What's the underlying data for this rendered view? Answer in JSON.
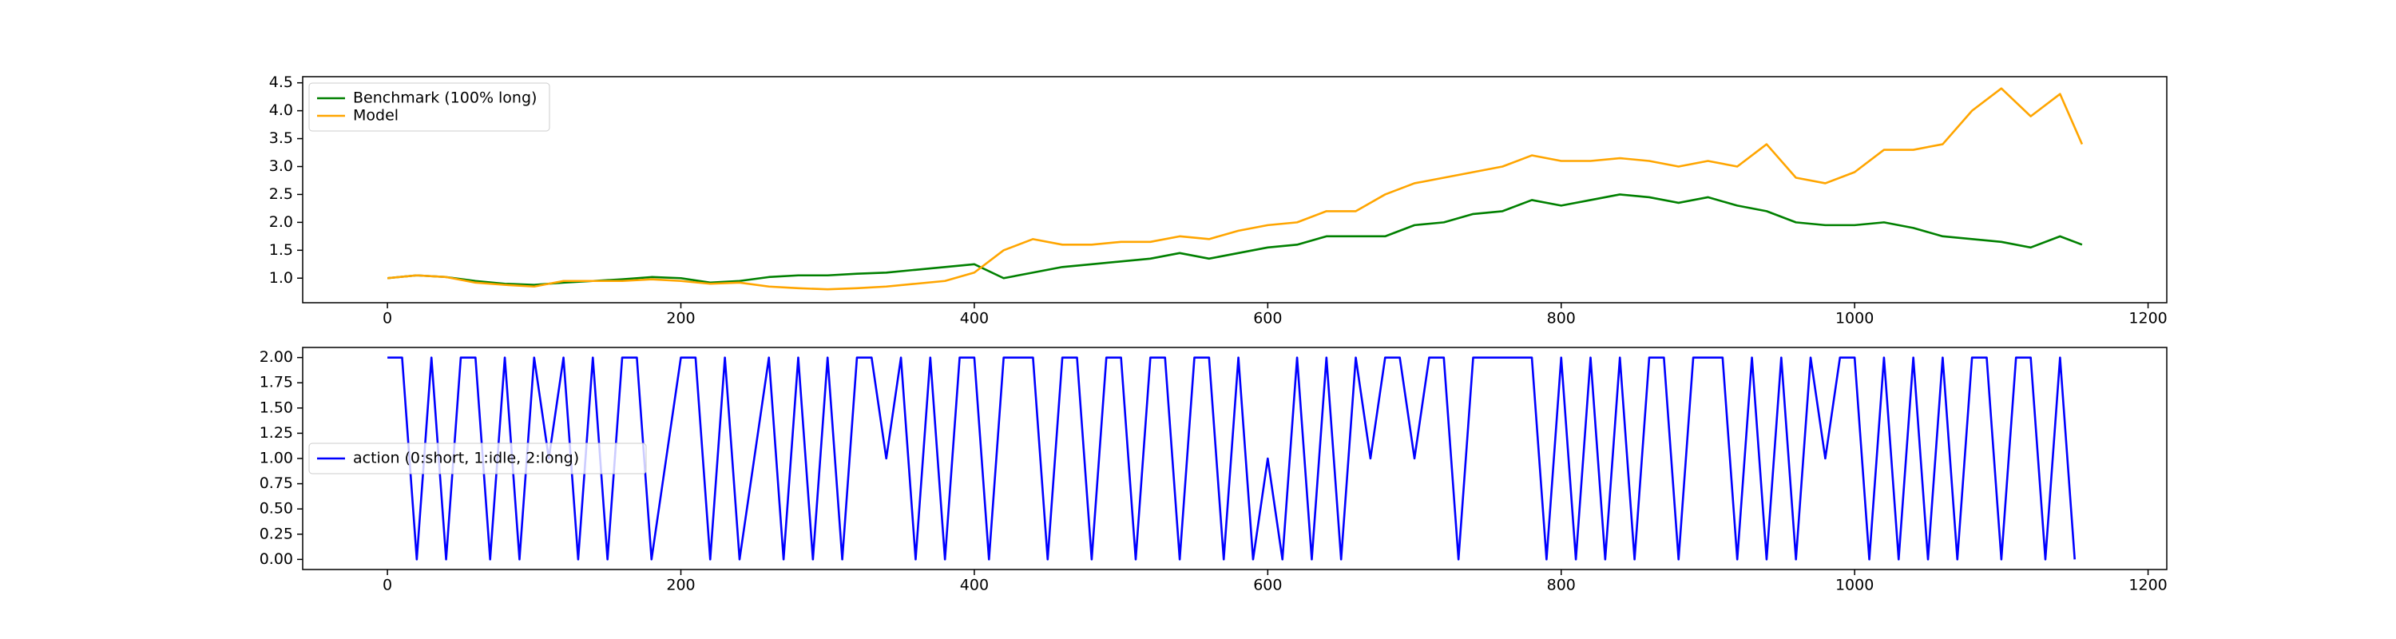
{
  "chart_data": [
    {
      "type": "line",
      "legend": "upper left",
      "x": [
        0,
        20,
        40,
        60,
        80,
        100,
        120,
        140,
        160,
        180,
        200,
        220,
        240,
        260,
        280,
        300,
        320,
        340,
        360,
        380,
        400,
        420,
        440,
        460,
        480,
        500,
        520,
        540,
        560,
        580,
        600,
        620,
        640,
        660,
        680,
        700,
        720,
        740,
        760,
        780,
        800,
        820,
        840,
        860,
        880,
        900,
        920,
        940,
        960,
        980,
        1000,
        1020,
        1040,
        1060,
        1080,
        1100,
        1120,
        1140,
        1155
      ],
      "series": [
        {
          "name": "Benchmark (100% long)",
          "color": "#008000",
          "values": [
            1.0,
            1.05,
            1.02,
            0.95,
            0.9,
            0.88,
            0.92,
            0.95,
            0.98,
            1.02,
            1.0,
            0.92,
            0.95,
            1.02,
            1.05,
            1.05,
            1.08,
            1.1,
            1.15,
            1.2,
            1.25,
            1.0,
            1.1,
            1.2,
            1.25,
            1.3,
            1.35,
            1.45,
            1.35,
            1.45,
            1.55,
            1.6,
            1.75,
            1.75,
            1.75,
            1.95,
            2.0,
            2.15,
            2.2,
            2.4,
            2.3,
            2.4,
            2.5,
            2.45,
            2.35,
            2.45,
            2.3,
            2.2,
            2.0,
            1.95,
            1.95,
            2.0,
            1.9,
            1.75,
            1.7,
            1.65,
            1.55,
            1.75,
            1.6
          ]
        },
        {
          "name": "Model",
          "color": "#ffa500",
          "values": [
            1.0,
            1.05,
            1.02,
            0.92,
            0.88,
            0.85,
            0.95,
            0.95,
            0.95,
            0.98,
            0.95,
            0.9,
            0.92,
            0.85,
            0.82,
            0.8,
            0.82,
            0.85,
            0.9,
            0.95,
            1.1,
            1.5,
            1.7,
            1.6,
            1.6,
            1.65,
            1.65,
            1.75,
            1.7,
            1.85,
            1.95,
            2.0,
            2.2,
            2.2,
            2.5,
            2.7,
            2.8,
            2.9,
            3.0,
            3.2,
            3.1,
            3.1,
            3.15,
            3.1,
            3.0,
            3.1,
            3.0,
            3.4,
            2.8,
            2.7,
            2.9,
            3.3,
            3.3,
            3.4,
            4.0,
            4.4,
            3.9,
            4.3,
            3.4
          ]
        }
      ],
      "xlim": [
        -57.75,
        1212.75
      ],
      "xticks": [
        0,
        200,
        400,
        600,
        800,
        1000,
        1200
      ],
      "ylim": [
        0.56,
        4.61
      ],
      "yticks": [
        {
          "value": 1,
          "label": "1.0"
        },
        1.5,
        {
          "value": 2,
          "label": "2.0"
        },
        2.5,
        {
          "value": 3,
          "label": "3.0"
        },
        3.5,
        {
          "value": 4,
          "label": "4.0"
        },
        4.5
      ]
    },
    {
      "type": "line",
      "legend": "center left",
      "x": [
        0,
        10,
        20,
        30,
        40,
        50,
        60,
        70,
        80,
        90,
        100,
        110,
        120,
        130,
        140,
        150,
        160,
        170,
        180,
        190,
        200,
        210,
        220,
        230,
        240,
        250,
        260,
        270,
        280,
        290,
        300,
        310,
        320,
        330,
        340,
        350,
        360,
        370,
        380,
        390,
        400,
        410,
        420,
        430,
        440,
        450,
        460,
        470,
        480,
        490,
        500,
        510,
        520,
        530,
        540,
        550,
        560,
        570,
        580,
        590,
        600,
        610,
        620,
        630,
        640,
        650,
        660,
        670,
        680,
        690,
        700,
        710,
        720,
        730,
        740,
        750,
        760,
        770,
        780,
        790,
        800,
        810,
        820,
        830,
        840,
        850,
        860,
        870,
        880,
        890,
        900,
        910,
        920,
        930,
        940,
        950,
        960,
        970,
        980,
        990,
        1000,
        1010,
        1020,
        1030,
        1040,
        1050,
        1060,
        1070,
        1080,
        1090,
        1100,
        1110,
        1120,
        1130,
        1140,
        1150
      ],
      "series": [
        {
          "name": "action (0:short, 1:idle, 2:long)",
          "color": "#0000ff",
          "values": [
            2,
            2,
            0,
            2,
            0,
            2,
            2,
            0,
            2,
            0,
            2,
            1,
            2,
            0,
            2,
            0,
            2,
            2,
            0,
            1,
            2,
            2,
            0,
            2,
            0,
            1,
            2,
            0,
            2,
            0,
            2,
            0,
            2,
            2,
            1,
            2,
            0,
            2,
            0,
            2,
            2,
            0,
            2,
            2,
            2,
            0,
            2,
            2,
            0,
            2,
            2,
            0,
            2,
            2,
            0,
            2,
            2,
            0,
            2,
            0,
            1,
            0,
            2,
            0,
            2,
            0,
            2,
            1,
            2,
            2,
            1,
            2,
            2,
            0,
            2,
            2,
            2,
            2,
            2,
            0,
            2,
            0,
            2,
            0,
            2,
            0,
            2,
            2,
            0,
            2,
            2,
            2,
            0,
            2,
            0,
            2,
            0,
            2,
            1,
            2,
            2,
            0,
            2,
            0,
            2,
            0,
            2,
            0,
            2,
            2,
            0,
            2,
            2,
            0,
            2,
            0
          ]
        }
      ],
      "xlim": [
        -57.75,
        1212.75
      ],
      "xticks": [
        0,
        200,
        400,
        600,
        800,
        1000,
        1200
      ],
      "ylim": [
        -0.1,
        2.1
      ],
      "yticks": [
        {
          "value": 0,
          "label": "0.00"
        },
        {
          "value": 0.25,
          "label": "0.25"
        },
        {
          "value": 0.5,
          "label": "0.50"
        },
        {
          "value": 0.75,
          "label": "0.75"
        },
        {
          "value": 1,
          "label": "1.00"
        },
        {
          "value": 1.25,
          "label": "1.25"
        },
        {
          "value": 1.5,
          "label": "1.50"
        },
        {
          "value": 1.75,
          "label": "1.75"
        },
        {
          "value": 2,
          "label": "2.00"
        }
      ]
    }
  ]
}
